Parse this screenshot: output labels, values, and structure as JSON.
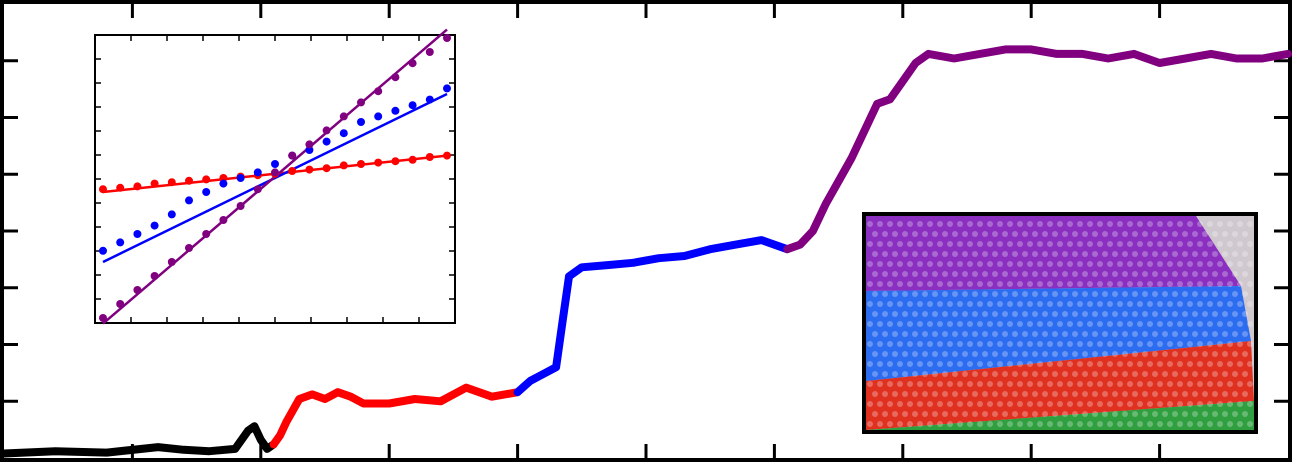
{
  "chart_data": [
    {
      "type": "line",
      "title": "",
      "xlabel": "",
      "ylabel": "",
      "xlim": [
        0,
        100
      ],
      "ylim": [
        0,
        100
      ],
      "grid": false,
      "legend": "none",
      "x_ticks": [
        10,
        20,
        30,
        40,
        50,
        60,
        70,
        80,
        90
      ],
      "y_ticks": [
        12.5,
        25,
        37.5,
        50,
        62.5,
        75,
        87.5
      ],
      "series": [
        {
          "color": "#000000",
          "x": [
            0,
            4,
            8,
            12,
            14,
            16,
            18,
            19,
            19.5,
            20,
            20.5,
            21
          ],
          "y": [
            1,
            1.5,
            1.2,
            2.4,
            1.8,
            1.5,
            2,
            6,
            7,
            4,
            2,
            3
          ]
        },
        {
          "color": "#ff0000",
          "x": [
            21,
            21.5,
            22,
            23,
            24,
            25,
            26,
            27,
            28,
            30,
            32,
            34,
            36,
            38,
            40
          ],
          "y": [
            3,
            5,
            8,
            13,
            14,
            13,
            14.5,
            13.5,
            12,
            12,
            13,
            12.5,
            15.5,
            13.5,
            14.5
          ]
        },
        {
          "color": "#0000ff",
          "x": [
            40,
            41,
            42,
            43,
            43.5,
            44,
            45,
            47,
            49,
            51,
            53,
            55,
            57,
            59,
            61
          ],
          "y": [
            14.5,
            17,
            18.5,
            20,
            30,
            40,
            42,
            42.5,
            43,
            44,
            44.5,
            46,
            47,
            48,
            46
          ]
        },
        {
          "color": "#800080",
          "x": [
            61,
            62,
            63,
            64,
            65,
            66,
            67,
            68,
            69,
            70,
            71,
            72,
            74,
            76,
            78,
            80,
            82,
            84,
            86,
            88,
            90,
            92,
            94,
            96,
            98,
            100
          ],
          "y": [
            46,
            47,
            50,
            56,
            61,
            66,
            72,
            78,
            79,
            83,
            87,
            89,
            88,
            89,
            90,
            90,
            89,
            89,
            88,
            89,
            87,
            88,
            89,
            88,
            88,
            89
          ]
        }
      ]
    },
    {
      "type": "scatter",
      "title": "",
      "xlabel": "",
      "ylabel": "",
      "xlim": [
        0,
        20
      ],
      "ylim": [
        0,
        10
      ],
      "grid": false,
      "legend": "none",
      "series": [
        {
          "color": "#ff0000",
          "x": [
            0,
            1,
            2,
            3,
            4,
            5,
            6,
            7,
            8,
            9,
            10,
            11,
            12,
            13,
            14,
            15,
            16,
            17,
            18,
            19,
            20
          ],
          "y": [
            4.6,
            4.65,
            4.7,
            4.8,
            4.85,
            4.9,
            4.95,
            5.0,
            5.05,
            5.1,
            5.15,
            5.25,
            5.3,
            5.35,
            5.45,
            5.5,
            5.55,
            5.6,
            5.65,
            5.75,
            5.8
          ],
          "fit": [
            4.5,
            5.8
          ]
        },
        {
          "color": "#0000ff",
          "x": [
            0,
            1,
            2,
            3,
            4,
            5,
            6,
            7,
            8,
            9,
            10,
            11,
            12,
            13,
            14,
            15,
            16,
            17,
            18,
            19,
            20
          ],
          "y": [
            2.4,
            2.7,
            3.0,
            3.3,
            3.7,
            4.2,
            4.5,
            4.8,
            5.0,
            5.2,
            5.5,
            5.8,
            6.0,
            6.3,
            6.6,
            7.0,
            7.2,
            7.4,
            7.6,
            7.8,
            8.2
          ],
          "fit": [
            2.0,
            8.0
          ]
        },
        {
          "color": "#800080",
          "x": [
            0,
            1,
            2,
            3,
            4,
            5,
            6,
            7,
            8,
            9,
            10,
            11,
            12,
            13,
            14,
            15,
            16,
            17,
            18,
            19,
            20
          ],
          "y": [
            0.0,
            0.5,
            1.0,
            1.5,
            2.0,
            2.5,
            3.0,
            3.5,
            4.0,
            4.6,
            5.2,
            5.8,
            6.2,
            6.7,
            7.2,
            7.7,
            8.1,
            8.6,
            9.1,
            9.5,
            10.0
          ],
          "fit": [
            -0.2,
            10.3
          ]
        }
      ]
    }
  ],
  "inset_image": {
    "bands": [
      {
        "color": "#8a2fc0"
      },
      {
        "color": "#2c6cf0"
      },
      {
        "color": "#e03020"
      },
      {
        "color": "#2f9f3f"
      }
    ],
    "background": "#cfc8cf"
  }
}
